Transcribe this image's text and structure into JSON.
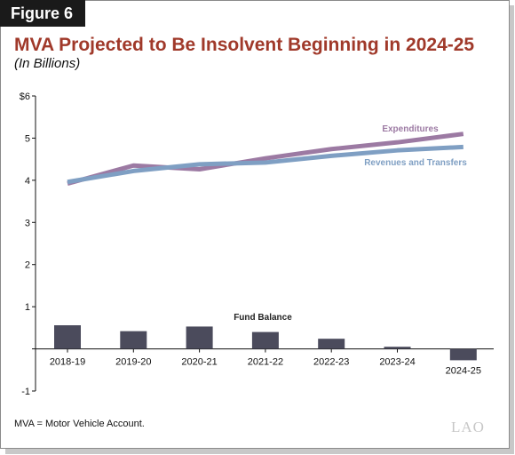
{
  "figure_label": "Figure 6",
  "footnote": "MVA = Motor Vehicle Account.",
  "logo_text": "LAO",
  "colors": {
    "title": "#a0392a",
    "expenditures": "#9c7aa3",
    "revenues": "#7f9fc3",
    "fund_balance": "#4b4b5c"
  },
  "chart_data": {
    "type": "line",
    "title": "MVA Projected to Be Insolvent Beginning in 2024-25",
    "subtitle": "(In Billions)",
    "categories": [
      "2018-19",
      "2019-20",
      "2020-21",
      "2021-22",
      "2022-23",
      "2023-24",
      "2024-25"
    ],
    "y_ticks": [
      "$6",
      "5",
      "4",
      "3",
      "2",
      "1",
      "",
      "-1"
    ],
    "ylim": [
      -1,
      6
    ],
    "grid": false,
    "series": [
      {
        "name": "Expenditures",
        "type": "line",
        "values": [
          3.92,
          4.35,
          4.26,
          4.52,
          4.74,
          4.9,
          5.1
        ]
      },
      {
        "name": "Revenues and Transfers",
        "type": "line",
        "values": [
          3.96,
          4.22,
          4.38,
          4.42,
          4.58,
          4.71,
          4.79
        ]
      },
      {
        "name": "Fund Balance",
        "type": "bar",
        "values": [
          0.56,
          0.42,
          0.53,
          0.4,
          0.24,
          0.05,
          -0.27
        ]
      }
    ]
  }
}
